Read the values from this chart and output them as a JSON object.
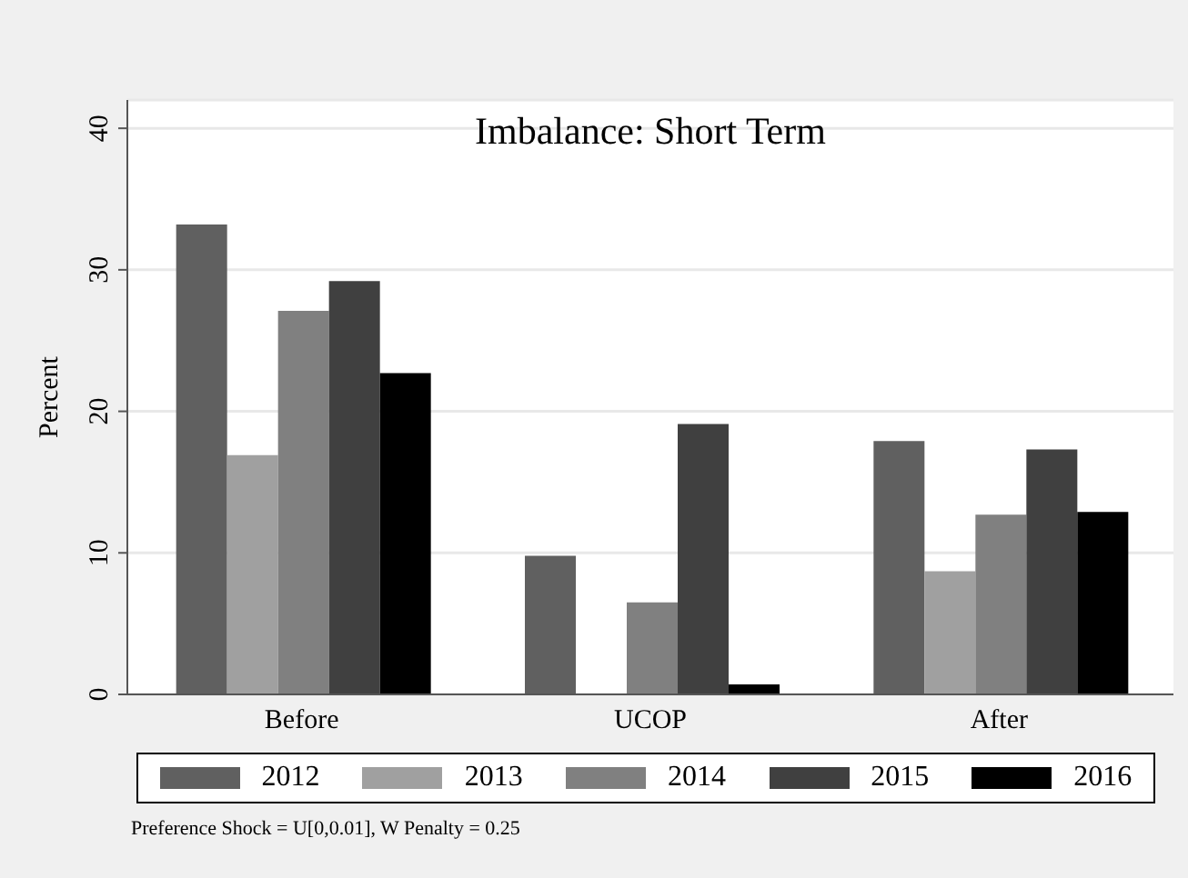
{
  "chart_data": {
    "type": "bar",
    "title": "Imbalance: Short Term",
    "ylabel": "Percent",
    "categories": [
      "Before",
      "UCOP",
      "After"
    ],
    "series": [
      {
        "name": "2012",
        "color": "#606060",
        "values": [
          33.2,
          9.8,
          17.9
        ]
      },
      {
        "name": "2013",
        "color": "#a0a0a0",
        "values": [
          16.9,
          0,
          8.7
        ]
      },
      {
        "name": "2014",
        "color": "#808080",
        "values": [
          27.1,
          6.5,
          12.7
        ]
      },
      {
        "name": "2015",
        "color": "#404040",
        "values": [
          29.2,
          19.1,
          17.3
        ]
      },
      {
        "name": "2016",
        "color": "#000000",
        "values": [
          22.7,
          0.7,
          12.9
        ]
      }
    ],
    "ylim": [
      0,
      42
    ],
    "yticks": [
      0,
      10,
      20,
      30,
      40
    ],
    "grid": "y",
    "legend": "bottom",
    "annotations": [
      "Preference Shock = U[0,0.01], W Penalty = 0.25"
    ]
  }
}
